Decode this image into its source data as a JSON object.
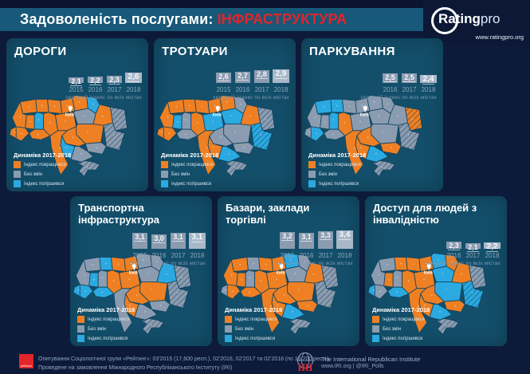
{
  "header": {
    "title_prefix": "Задоволеність послугами:",
    "title_highlight": "ІНФРАСТРУКТУРА"
  },
  "brand": {
    "logo_bold": "Rating",
    "logo_light": "pro",
    "website": "www.ratingpro.org"
  },
  "colors": {
    "bg": "#0d1a3a",
    "header_band": "#185878",
    "panel": "#134F6B",
    "orange": "#EE8023",
    "gray": "#8C9CB0",
    "blue": "#2BA9E1",
    "bar": "#8C9CB0",
    "bar_last": "#A9B8C9",
    "accent_red": "#E2242B"
  },
  "legend": {
    "title": "Динаміка 2017-2018",
    "items": [
      {
        "code": "o",
        "label": "Індекс покращився",
        "color": "#EE8023"
      },
      {
        "code": "g",
        "label": "Без змін",
        "color": "#8C9CB0"
      },
      {
        "code": "b",
        "label": "Індекс погіршився",
        "color": "#2BA9E1"
      }
    ]
  },
  "map_note": {
    "kyiv_label": "Київ"
  },
  "chart_data": [
    {
      "type": "bar",
      "title": "ДОРОГИ",
      "categories": [
        "2015",
        "2016",
        "2017",
        "2018"
      ],
      "values": [
        2.1,
        2.2,
        2.3,
        2.6
      ],
      "values_display": [
        "2,1",
        "2,2",
        "2,3",
        "2,6"
      ],
      "caption": "середній індекс по всіх містах",
      "map_color_key": {
        "o": "індекс покращився",
        "g": "без змін",
        "b": "індекс погіршився"
      },
      "map_dynamics_2017_2018": [
        "o",
        "o",
        "o",
        "o",
        "o",
        "b",
        "o",
        "o",
        "b",
        "o",
        "o",
        "g",
        "o",
        "g",
        "g",
        "o",
        "g",
        "o",
        "b",
        "g",
        "o",
        "o",
        "o",
        "o",
        "g"
      ]
    },
    {
      "type": "bar",
      "title": "ТРОТУАРИ",
      "categories": [
        "2015",
        "2016",
        "2017",
        "2018"
      ],
      "values": [
        2.6,
        2.7,
        2.8,
        2.9
      ],
      "values_display": [
        "2,6",
        "2,7",
        "2,8",
        "2,9"
      ],
      "caption": "середній індекс по всіх містах",
      "map_color_key": {
        "o": "індекс покращився",
        "g": "без змін",
        "b": "індекс погіршився"
      },
      "map_dynamics_2017_2018": [
        "o",
        "o",
        "o",
        "o",
        "o",
        "g",
        "o",
        "b",
        "g",
        "o",
        "b",
        "b",
        "o",
        "g",
        "b",
        "g",
        "g",
        "g",
        "o",
        "b",
        "o",
        "o",
        "o",
        "g",
        "g"
      ]
    },
    {
      "type": "bar",
      "title": "ПАРКУВАННЯ",
      "categories": [
        "2016",
        "2017",
        "2018"
      ],
      "values": [
        2.5,
        2.5,
        2.4
      ],
      "values_display": [
        "2,5",
        "2,5",
        "2,4"
      ],
      "caption": "середній індекс по всіх містах",
      "map_color_key": {
        "o": "індекс покращився",
        "g": "без змін",
        "b": "індекс погіршився"
      },
      "map_dynamics_2017_2018": [
        "b",
        "b",
        "g",
        "g",
        "g",
        "g",
        "g",
        "g",
        "b",
        "o",
        "g",
        "g",
        "g",
        "o",
        "g",
        "g",
        "o",
        "o",
        "o",
        "b",
        "o",
        "g",
        "b",
        "g",
        "g"
      ]
    },
    {
      "type": "bar",
      "title": "Транспортна інфраструктура",
      "categories": [
        "2015",
        "2016",
        "2017",
        "2018"
      ],
      "values": [
        3.1,
        3.0,
        3.1,
        3.1
      ],
      "values_display": [
        "3,1",
        "3,0",
        "3,1",
        "3,1"
      ],
      "caption": "середній індекс по всіх містах",
      "map_color_key": {
        "o": "індекс покращився",
        "g": "без змін",
        "b": "індекс погіршився"
      },
      "map_dynamics_2017_2018": [
        "g",
        "b",
        "o",
        "o",
        "g",
        "g",
        "g",
        "b",
        "g",
        "o",
        "o",
        "g",
        "b",
        "g",
        "g",
        "o",
        "g",
        "o",
        "o",
        "g",
        "g",
        "b",
        "b",
        "b",
        "g"
      ]
    },
    {
      "type": "bar",
      "title": "Базари, заклади торгівлі",
      "categories": [
        "2015",
        "2016",
        "2017",
        "2018"
      ],
      "values": [
        3.2,
        3.1,
        3.3,
        3.4
      ],
      "values_display": [
        "3,2",
        "3,1",
        "3,3",
        "3,4"
      ],
      "caption": "середній індекс по всіх містах",
      "map_color_key": {
        "o": "індекс покращився",
        "g": "без змін",
        "b": "індекс погіршився"
      },
      "map_dynamics_2017_2018": [
        "o",
        "g",
        "o",
        "o",
        "b",
        "g",
        "o",
        "o",
        "g",
        "o",
        "o",
        "g",
        "o",
        "g",
        "g",
        "o",
        "o",
        "o",
        "o",
        "b",
        "o",
        "g",
        "o",
        "o",
        "g"
      ]
    },
    {
      "type": "bar",
      "title": "Доступ для людей з інвалідністю",
      "categories": [
        "2016",
        "2017",
        "2018"
      ],
      "values": [
        2.3,
        2.1,
        2.2
      ],
      "values_display": [
        "2,3",
        "2,1",
        "2,2"
      ],
      "caption": "середній індекс по всіх містах",
      "map_color_key": {
        "o": "індекс покращився",
        "g": "без змін",
        "b": "індекс погіршився"
      },
      "map_dynamics_2017_2018": [
        "g",
        "o",
        "o",
        "o",
        "b",
        "o",
        "g",
        "o",
        "g",
        "o",
        "o",
        "b",
        "o",
        "g",
        "b",
        "b",
        "o",
        "o",
        "o",
        "b",
        "o",
        "b",
        "g",
        "b",
        "g"
      ]
    }
  ],
  "footer": {
    "survey_line1": "Опитування Соціологічної групи «Рейтинг»: 03'2015 (17,600 респ.), 02'2016, 02'2017 та 02'2018 (по 19,200 респ.).",
    "survey_line2": "Проведене на замовлення Міжнародного Республіканського Інституту (IRI)",
    "rating_logo_text": "рейтинг",
    "iri_abbr": "IRI",
    "iri_line1": "The International Republican Institute",
    "iri_line2": "www.IRI.org | @IRI_Polls"
  }
}
